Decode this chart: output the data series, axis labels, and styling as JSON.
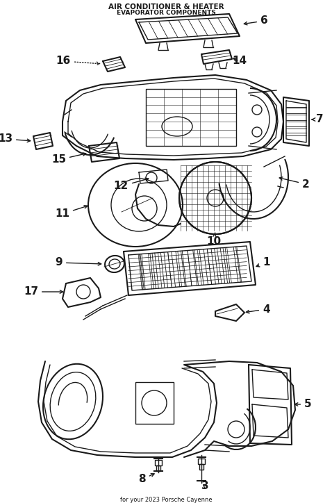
{
  "title": "AIR CONDITIONER & HEATER",
  "subtitle": "EVAPORATOR COMPONENTS",
  "vehicle": "for your 2023 Porsche Cayenne",
  "background_color": "#ffffff",
  "line_color": "#1a1a1a",
  "label_color": "#1a1a1a",
  "fig_width": 4.78,
  "fig_height": 7.24,
  "dpi": 100
}
